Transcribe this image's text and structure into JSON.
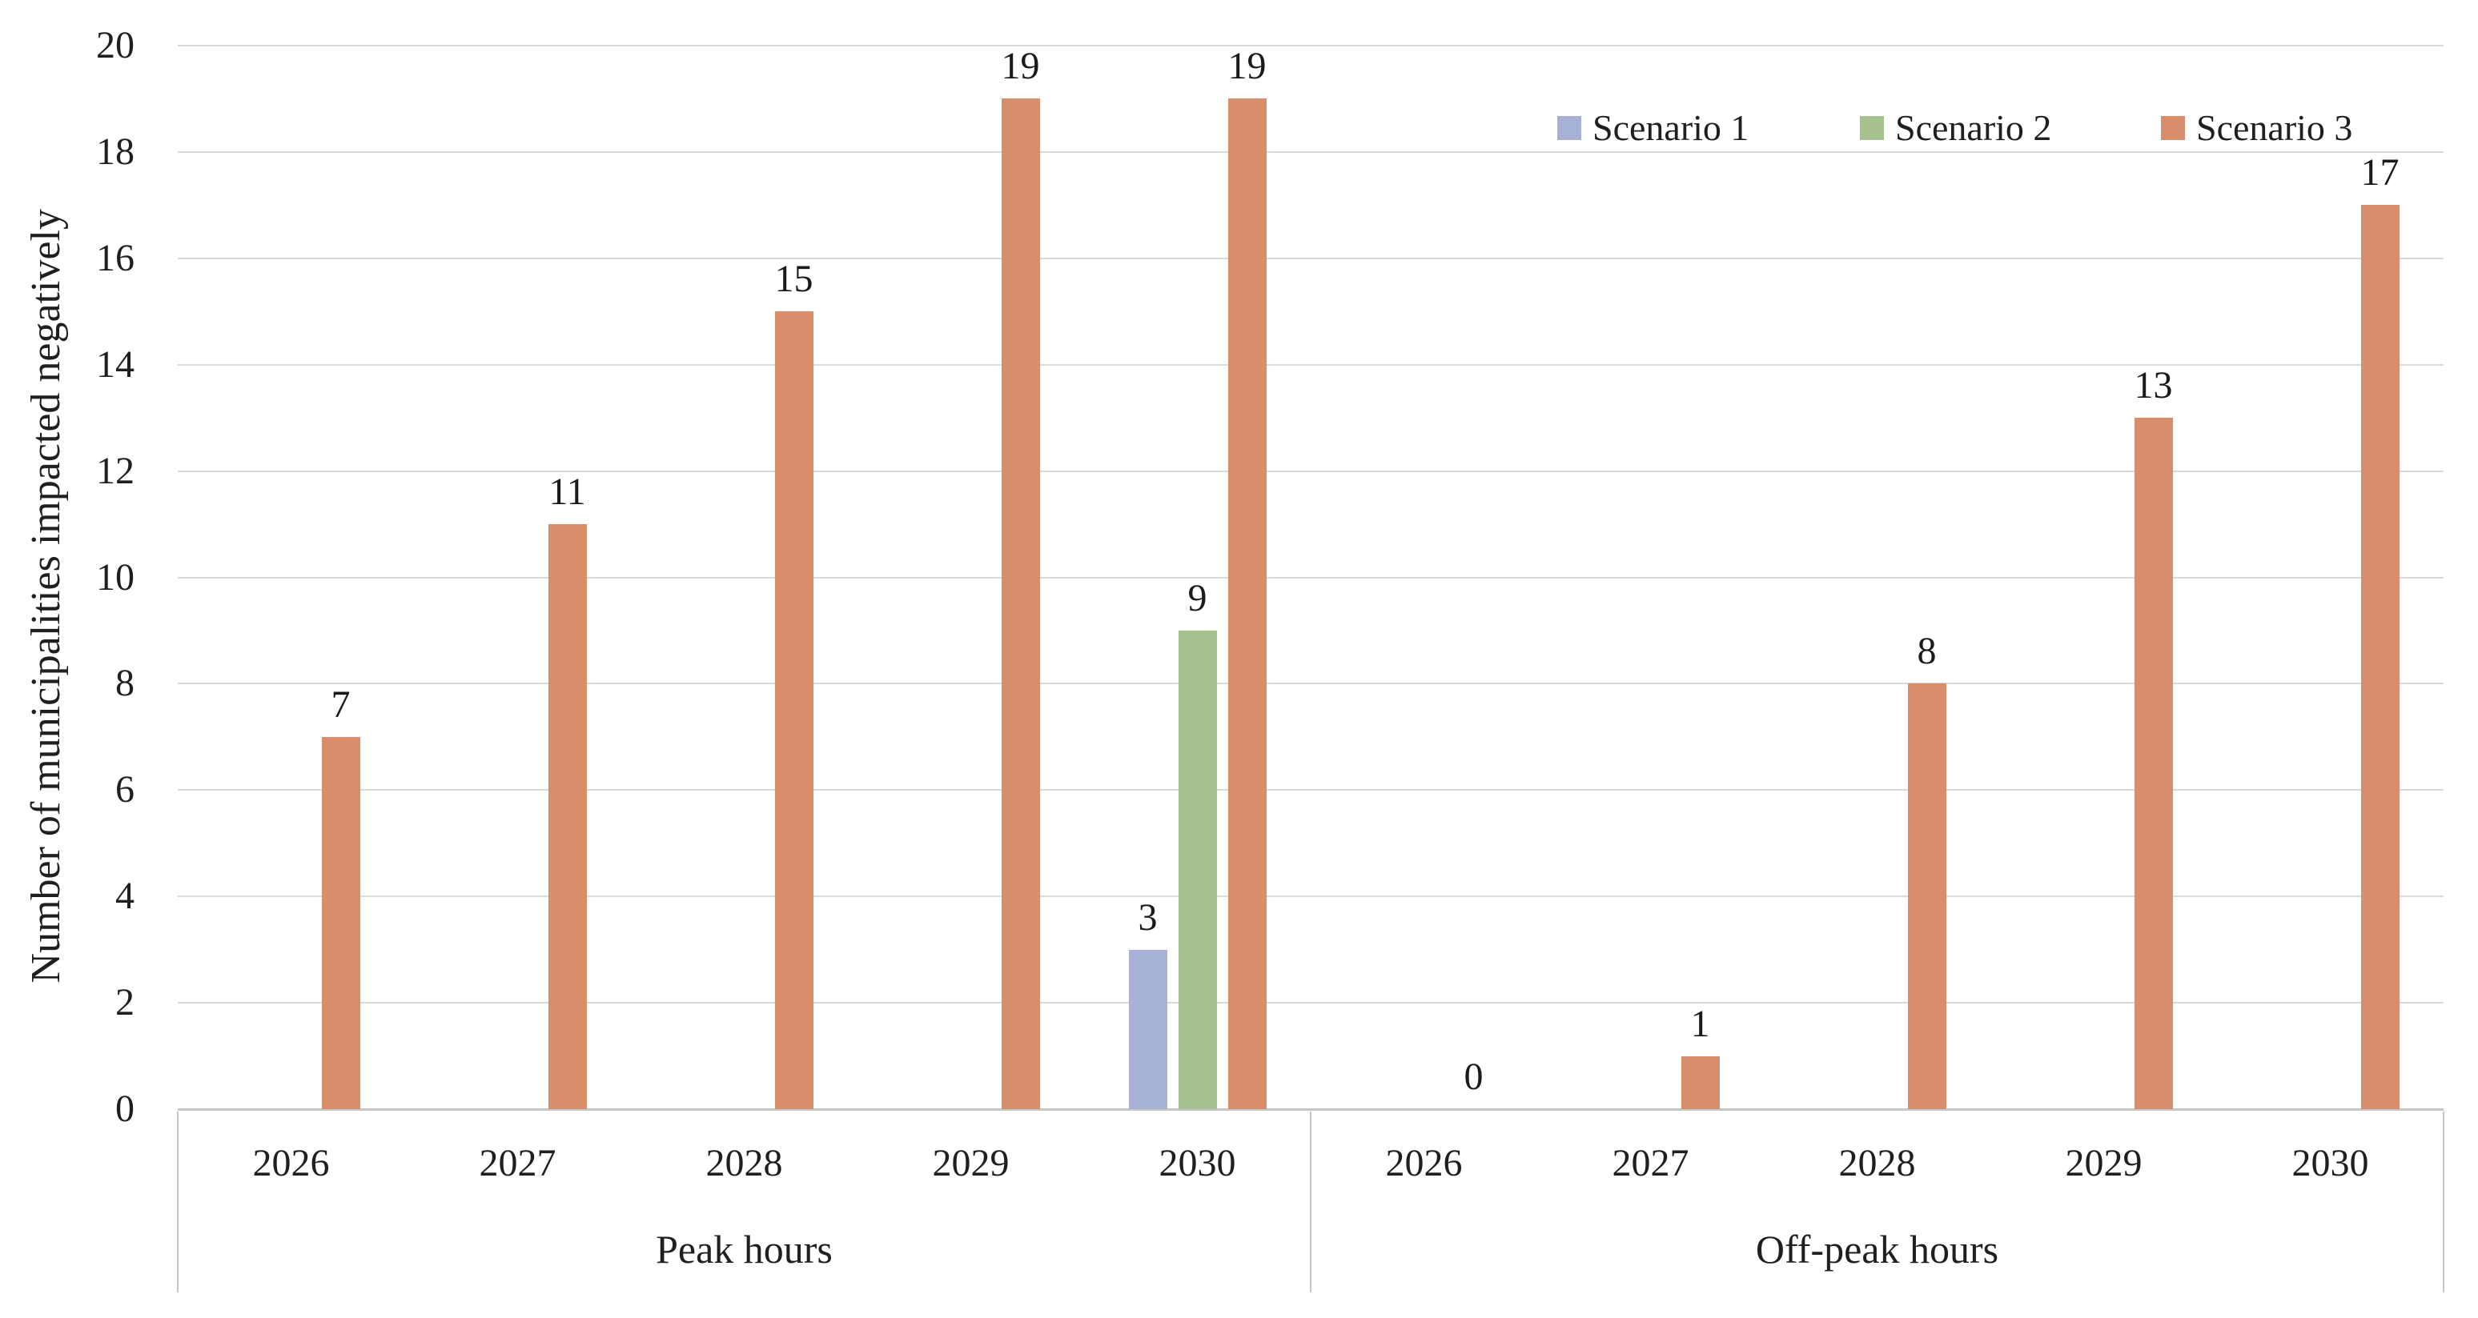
{
  "figure_type": "clustered-column-chart",
  "chart_data": {
    "type": "bar",
    "title": "",
    "ylabel": "Number of municipalities impacted negatively",
    "xlabel": "",
    "ylim": [
      0,
      20
    ],
    "ytick_step": 2,
    "ytick_labels": [
      "0",
      "2",
      "4",
      "6",
      "8",
      "10",
      "12",
      "14",
      "16",
      "18",
      "20"
    ],
    "grid": "horizontal-only",
    "legend_position": "top-right",
    "legend_entries": [
      "Scenario 1",
      "Scenario 2",
      "Scenario 3"
    ],
    "colors": {
      "scenario_1": "#a8b2d6",
      "scenario_2": "#a6c28f",
      "scenario_3": "#d88e6b",
      "gridline": "#d9d9d9",
      "axis_line": "#c6c6c6",
      "text": "#1f1f1f"
    },
    "groups": [
      {
        "label": "Peak hours",
        "categories": [
          "2026",
          "2027",
          "2028",
          "2029",
          "2030"
        ],
        "series": [
          {
            "name": "Scenario 1",
            "values": [
              0,
              0,
              0,
              0,
              3
            ],
            "labels": [
              null,
              null,
              null,
              null,
              "3"
            ]
          },
          {
            "name": "Scenario 2",
            "values": [
              0,
              0,
              0,
              0,
              9
            ],
            "labels": [
              null,
              null,
              null,
              null,
              "9"
            ]
          },
          {
            "name": "Scenario 3",
            "values": [
              7,
              11,
              15,
              19,
              19
            ],
            "labels": [
              "7",
              "11",
              "15",
              "19",
              "19"
            ]
          }
        ]
      },
      {
        "label": "Off-peak hours",
        "categories": [
          "2026",
          "2027",
          "2028",
          "2029",
          "2030"
        ],
        "series": [
          {
            "name": "Scenario 1",
            "values": [
              0,
              0,
              0,
              0,
              0
            ],
            "labels": [
              null,
              null,
              null,
              null,
              null
            ]
          },
          {
            "name": "Scenario 2",
            "values": [
              0,
              0,
              0,
              0,
              0
            ],
            "labels": [
              null,
              null,
              null,
              null,
              null
            ]
          },
          {
            "name": "Scenario 3",
            "values": [
              0,
              1,
              8,
              13,
              17
            ],
            "labels": [
              "0",
              "1",
              "8",
              "13",
              "17"
            ]
          }
        ]
      }
    ]
  }
}
